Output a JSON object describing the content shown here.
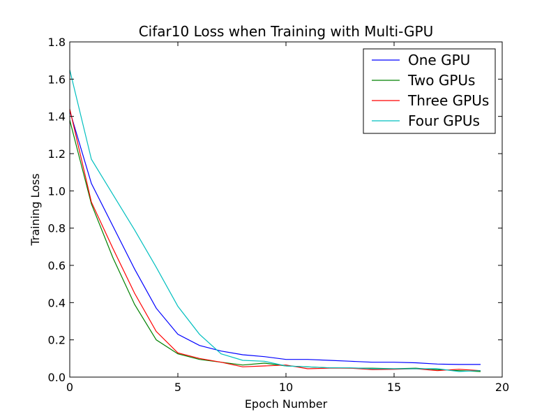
{
  "chart_data": {
    "type": "line",
    "title": "Cifar10 Loss when Training with Multi-GPU",
    "xlabel": "Epoch Number",
    "ylabel": "Training Loss",
    "xlim": [
      0,
      20
    ],
    "ylim": [
      0.0,
      1.8
    ],
    "x_ticks": [
      0,
      5,
      10,
      15,
      20
    ],
    "x_tick_labels": [
      "0",
      "5",
      "10",
      "15",
      "20"
    ],
    "y_ticks": [
      0.0,
      0.2,
      0.4,
      0.6,
      0.8,
      1.0,
      1.2,
      1.4,
      1.6,
      1.8
    ],
    "y_tick_labels": [
      "0.0",
      "0.2",
      "0.4",
      "0.6",
      "0.8",
      "1.0",
      "1.2",
      "1.4",
      "1.6",
      "1.8"
    ],
    "grid": false,
    "legend_position": "top-right",
    "x": [
      0,
      1,
      2,
      3,
      4,
      5,
      6,
      7,
      8,
      9,
      10,
      11,
      12,
      13,
      14,
      15,
      16,
      17,
      18,
      19
    ],
    "series": [
      {
        "name": "One GPU",
        "color": "#0000ff",
        "values": [
          1.43,
          1.04,
          0.81,
          0.58,
          0.37,
          0.23,
          0.17,
          0.14,
          0.12,
          0.11,
          0.095,
          0.095,
          0.09,
          0.085,
          0.08,
          0.08,
          0.077,
          0.07,
          0.068,
          0.068
        ]
      },
      {
        "name": "Two GPUs",
        "color": "#008000",
        "values": [
          1.38,
          0.93,
          0.64,
          0.39,
          0.2,
          0.125,
          0.095,
          0.08,
          0.065,
          0.075,
          0.06,
          0.055,
          0.05,
          0.048,
          0.048,
          0.045,
          0.048,
          0.04,
          0.035,
          0.03
        ]
      },
      {
        "name": "Three GPUs",
        "color": "#ff0000",
        "values": [
          1.44,
          0.94,
          0.69,
          0.45,
          0.245,
          0.13,
          0.1,
          0.08,
          0.055,
          0.06,
          0.065,
          0.045,
          0.048,
          0.048,
          0.04,
          0.042,
          0.045,
          0.035,
          0.042,
          0.035
        ]
      },
      {
        "name": "Four GPUs",
        "color": "#00bfbf",
        "values": [
          1.65,
          1.17,
          0.98,
          0.79,
          0.59,
          0.38,
          0.23,
          0.125,
          0.09,
          0.085,
          0.06,
          0.055,
          0.05,
          0.05,
          0.045,
          0.045,
          0.045,
          0.045,
          0.03,
          0.035
        ]
      }
    ]
  }
}
